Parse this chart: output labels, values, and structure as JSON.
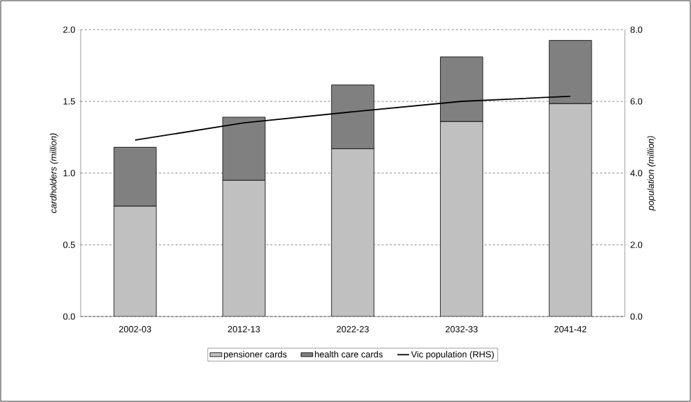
{
  "chart_data": {
    "type": "bar",
    "stacked": true,
    "ylabel": "cardholders (million)",
    "y2label": "population (million)",
    "categories": [
      "2002-03",
      "2012-13",
      "2022-23",
      "2032-33",
      "2041-42"
    ],
    "series": [
      {
        "name": "pensioner cards",
        "color": "#c0c0c0",
        "values": [
          0.77,
          0.95,
          1.17,
          1.36,
          1.485
        ]
      },
      {
        "name": "health care cards",
        "color": "#808080",
        "values": [
          0.41,
          0.44,
          0.445,
          0.45,
          0.44
        ]
      },
      {
        "name": "Vic population (RHS)",
        "type": "line",
        "axis": "y2",
        "color": "#000000",
        "values": [
          4.92,
          5.4,
          5.71,
          6.0,
          6.14
        ]
      }
    ],
    "ylim": [
      0,
      2
    ],
    "yticks": [
      {
        "value": 0,
        "label": "0.0"
      },
      {
        "value": 0.5,
        "label": "0.5"
      },
      {
        "value": 1,
        "label": "1.0"
      },
      {
        "value": 1.5,
        "label": "1.5"
      },
      {
        "value": 2,
        "label": "2.0"
      }
    ],
    "y2lim": [
      0,
      8
    ],
    "y2ticks": [
      {
        "value": 0,
        "label": "0.0"
      },
      {
        "value": 2,
        "label": "2.0"
      },
      {
        "value": 4,
        "label": "4.0"
      },
      {
        "value": 6,
        "label": "6.0"
      },
      {
        "value": 8,
        "label": "8.0"
      }
    ],
    "grid": "y",
    "legend": "bottom",
    "marker": "none",
    "line_style": "solid"
  }
}
